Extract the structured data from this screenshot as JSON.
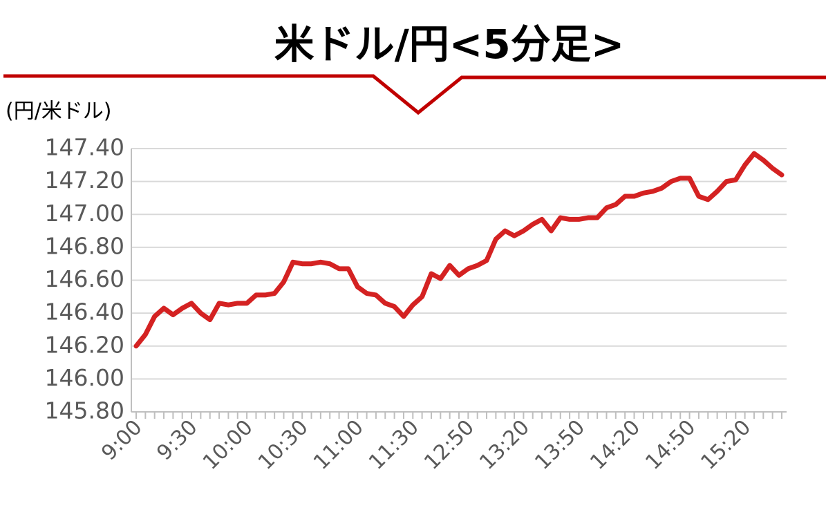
{
  "chart_data": {
    "type": "line",
    "title": "米ドル/円<5分足>",
    "y_label": "(円/米ドル)",
    "categories": [
      "9:00",
      null,
      null,
      null,
      null,
      null,
      "9:30",
      null,
      null,
      null,
      null,
      null,
      "10:00",
      null,
      null,
      null,
      null,
      null,
      "10:30",
      null,
      null,
      null,
      null,
      null,
      "11:00",
      null,
      null,
      null,
      null,
      null,
      "11:30",
      null,
      null,
      null,
      null,
      null,
      "12:50",
      null,
      null,
      null,
      null,
      null,
      "13:20",
      null,
      null,
      null,
      null,
      null,
      "13:50",
      null,
      null,
      null,
      null,
      null,
      "14:20",
      null,
      null,
      null,
      null,
      null,
      "14:50",
      null,
      null,
      null,
      null,
      null,
      "15:20",
      null,
      null,
      null,
      null
    ],
    "series": [
      {
        "color": "#d42222",
        "values": [
          146.2,
          146.27,
          146.38,
          146.43,
          146.39,
          146.43,
          146.46,
          146.4,
          146.36,
          146.46,
          146.45,
          146.46,
          146.46,
          146.51,
          146.51,
          146.52,
          146.59,
          146.71,
          146.7,
          146.7,
          146.71,
          146.7,
          146.67,
          146.67,
          146.56,
          146.52,
          146.51,
          146.46,
          146.44,
          146.38,
          146.45,
          146.5,
          146.64,
          146.61,
          146.69,
          146.63,
          146.67,
          146.69,
          146.72,
          146.85,
          146.9,
          146.87,
          146.9,
          146.94,
          146.97,
          146.9,
          146.98,
          146.97,
          146.97,
          146.98,
          146.98,
          147.04,
          147.06,
          147.11,
          147.11,
          147.13,
          147.14,
          147.16,
          147.2,
          147.22,
          147.22,
          147.11,
          147.09,
          147.14,
          147.2,
          147.21,
          147.3,
          147.37,
          147.33,
          147.28,
          147.24
        ]
      }
    ],
    "ylim": [
      145.8,
      147.4
    ],
    "yticks": [
      {
        "value": 145.8,
        "label": "145.80"
      },
      {
        "value": 146.0,
        "label": "146.00"
      },
      {
        "value": 146.2,
        "label": "146.20"
      },
      {
        "value": 146.4,
        "label": "146.40"
      },
      {
        "value": 146.6,
        "label": "146.60"
      },
      {
        "value": 146.8,
        "label": "146.80"
      },
      {
        "value": 147.0,
        "label": "147.00"
      },
      {
        "value": 147.2,
        "label": "147.20"
      },
      {
        "value": 147.4,
        "label": "147.40"
      }
    ],
    "grid": true
  }
}
